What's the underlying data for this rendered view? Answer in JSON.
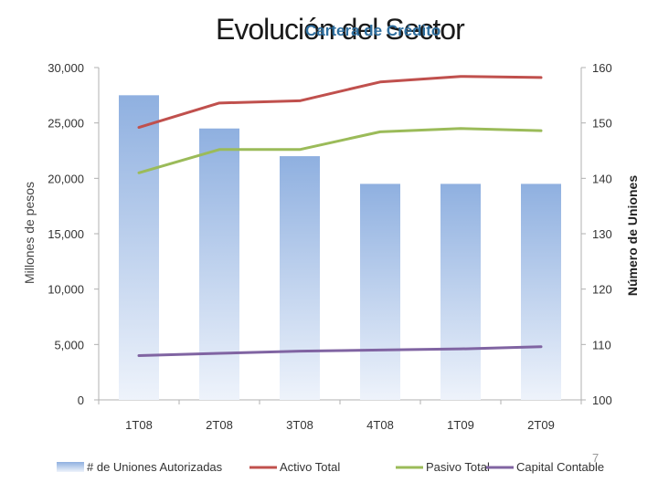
{
  "slide": {
    "title": "Evolución del Sector",
    "subtitle": "Cartera de Crédito",
    "page_number": "7"
  },
  "chart_data": {
    "type": "bar",
    "categories": [
      "1T08",
      "2T08",
      "3T08",
      "4T08",
      "1T09",
      "2T09"
    ],
    "ylabel": "Millones de pesos",
    "y2label": "Número de Uniones",
    "ylim": [
      0,
      30000
    ],
    "y2lim": [
      100,
      160
    ],
    "yticks": [
      "0",
      "5,000",
      "10,000",
      "15,000",
      "20,000",
      "25,000",
      "30,000"
    ],
    "y2ticks": [
      "100",
      "110",
      "120",
      "130",
      "140",
      "150",
      "160"
    ],
    "grid": false,
    "legend_position": "bottom",
    "bar_series": {
      "name": "# de Uniones Autorizadas",
      "axis": "secondary",
      "values": [
        155,
        149,
        144,
        139,
        139,
        139
      ],
      "color": "#8fb0e0"
    },
    "series": [
      {
        "name": "Activo Total",
        "values": [
          24600,
          26800,
          27000,
          28700,
          29200,
          29100
        ],
        "color": "#c0504d"
      },
      {
        "name": "Pasivo Total",
        "values": [
          20500,
          22600,
          22600,
          24200,
          24500,
          24300
        ],
        "color": "#9bbb59"
      },
      {
        "name": "Capital Contable",
        "values": [
          4000,
          4200,
          4400,
          4500,
          4600,
          4800
        ],
        "color": "#8064a2"
      }
    ]
  }
}
